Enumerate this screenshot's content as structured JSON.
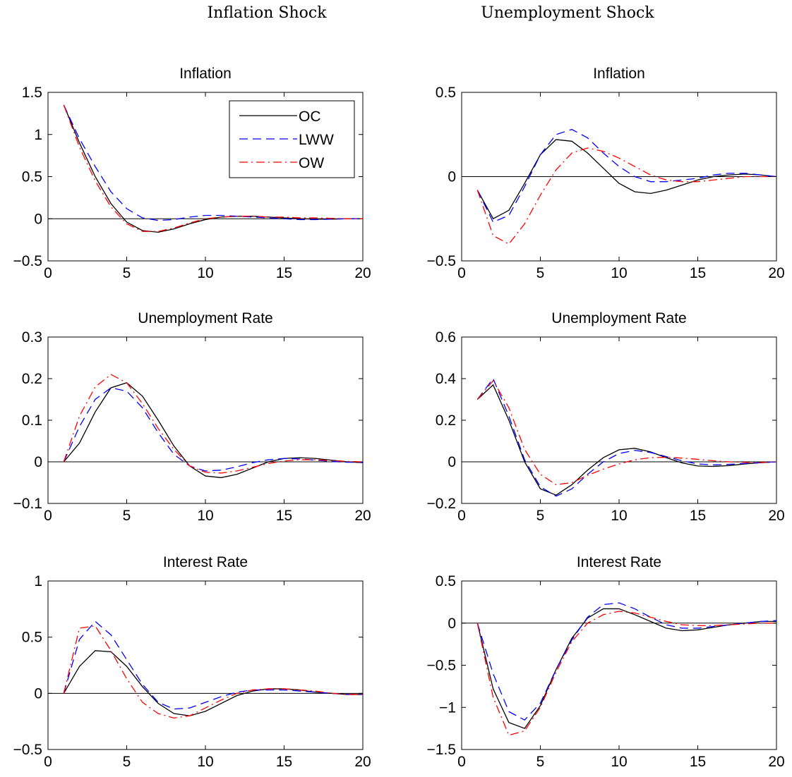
{
  "column_titles": [
    "Inflation Shock",
    "Unemployment Shock"
  ],
  "legend": [
    {
      "label": "OC",
      "color": "#000000",
      "dash": "solid"
    },
    {
      "label": "LWW",
      "color": "#0000ff",
      "dash": "dashed"
    },
    {
      "label": "OW",
      "color": "#ff0000",
      "dash": "dashdot"
    }
  ],
  "chart_data": [
    {
      "type": "line",
      "title": "Inflation",
      "column": "Inflation Shock",
      "xlim": [
        0,
        20
      ],
      "ylim": [
        -0.5,
        1.5
      ],
      "xticks": [
        0,
        5,
        10,
        15,
        20
      ],
      "yticks": [
        -0.5,
        0,
        0.5,
        1,
        1.5
      ],
      "ytick_labels": [
        "−0.5",
        "0",
        "0.5",
        "1",
        "1.5"
      ],
      "legend": true,
      "legend_position": "top-right",
      "zero_line": true,
      "x": [
        1,
        2,
        3,
        4,
        5,
        6,
        7,
        8,
        9,
        10,
        11,
        12,
        13,
        14,
        15,
        16,
        17,
        18,
        19,
        20
      ],
      "series": [
        {
          "name": "OC",
          "values": [
            1.35,
            0.9,
            0.5,
            0.18,
            -0.04,
            -0.14,
            -0.16,
            -0.12,
            -0.06,
            -0.01,
            0.02,
            0.03,
            0.03,
            0.02,
            0.01,
            0.0,
            -0.005,
            -0.005,
            0.0,
            0.0
          ]
        },
        {
          "name": "LWW",
          "values": [
            1.35,
            0.95,
            0.62,
            0.32,
            0.12,
            0.01,
            -0.02,
            -0.01,
            0.02,
            0.04,
            0.04,
            0.03,
            0.02,
            0.01,
            0.0,
            -0.01,
            -0.01,
            -0.005,
            0.0,
            0.0
          ]
        },
        {
          "name": "OW",
          "values": [
            1.35,
            0.85,
            0.45,
            0.14,
            -0.06,
            -0.15,
            -0.15,
            -0.11,
            -0.05,
            0.0,
            0.02,
            0.03,
            0.03,
            0.02,
            0.02,
            0.01,
            0.01,
            0.005,
            0.0,
            0.0
          ]
        }
      ]
    },
    {
      "type": "line",
      "title": "Inflation",
      "column": "Unemployment Shock",
      "xlim": [
        0,
        20
      ],
      "ylim": [
        -0.5,
        0.5
      ],
      "xticks": [
        0,
        5,
        10,
        15,
        20
      ],
      "yticks": [
        -0.5,
        0,
        0.5
      ],
      "ytick_labels": [
        "−0.5",
        "0",
        "0.5"
      ],
      "legend": false,
      "zero_line": true,
      "x": [
        1,
        2,
        3,
        4,
        5,
        6,
        7,
        8,
        9,
        10,
        11,
        12,
        13,
        14,
        15,
        16,
        17,
        18,
        19,
        20
      ],
      "series": [
        {
          "name": "OC",
          "values": [
            -0.08,
            -0.25,
            -0.2,
            -0.04,
            0.13,
            0.22,
            0.21,
            0.14,
            0.05,
            -0.04,
            -0.09,
            -0.1,
            -0.08,
            -0.05,
            -0.02,
            0.0,
            0.01,
            0.015,
            0.01,
            0.0
          ]
        },
        {
          "name": "LWW",
          "values": [
            -0.08,
            -0.27,
            -0.23,
            -0.06,
            0.13,
            0.25,
            0.28,
            0.23,
            0.14,
            0.06,
            0.0,
            -0.03,
            -0.03,
            -0.02,
            -0.01,
            0.01,
            0.02,
            0.02,
            0.01,
            0.0
          ]
        },
        {
          "name": "OW",
          "values": [
            -0.08,
            -0.35,
            -0.4,
            -0.28,
            -0.11,
            0.04,
            0.14,
            0.17,
            0.15,
            0.11,
            0.06,
            0.01,
            -0.02,
            -0.03,
            -0.03,
            -0.02,
            -0.01,
            0.0,
            0.0,
            0.0
          ]
        }
      ]
    },
    {
      "type": "line",
      "title": "Unemployment Rate",
      "column": "Inflation Shock",
      "xlim": [
        0,
        20
      ],
      "ylim": [
        -0.1,
        0.3
      ],
      "xticks": [
        0,
        5,
        10,
        15,
        20
      ],
      "yticks": [
        -0.1,
        0,
        0.1,
        0.2,
        0.3
      ],
      "ytick_labels": [
        "−0.1",
        "0",
        "0.1",
        "0.2",
        "0.3"
      ],
      "legend": false,
      "zero_line": true,
      "x": [
        1,
        2,
        3,
        4,
        5,
        6,
        7,
        8,
        9,
        10,
        11,
        12,
        13,
        14,
        15,
        16,
        17,
        18,
        19,
        20
      ],
      "series": [
        {
          "name": "OC",
          "values": [
            0.0,
            0.045,
            0.12,
            0.178,
            0.19,
            0.158,
            0.1,
            0.038,
            -0.01,
            -0.034,
            -0.038,
            -0.03,
            -0.015,
            0.0,
            0.008,
            0.01,
            0.008,
            0.004,
            0.0,
            -0.002
          ]
        },
        {
          "name": "LWW",
          "values": [
            0.0,
            0.085,
            0.15,
            0.178,
            0.17,
            0.13,
            0.07,
            0.018,
            -0.01,
            -0.022,
            -0.02,
            -0.012,
            -0.002,
            0.005,
            0.008,
            0.007,
            0.004,
            0.001,
            -0.001,
            -0.001
          ]
        },
        {
          "name": "OW",
          "values": [
            0.0,
            0.11,
            0.18,
            0.21,
            0.19,
            0.14,
            0.08,
            0.03,
            -0.01,
            -0.025,
            -0.027,
            -0.022,
            -0.013,
            -0.004,
            0.002,
            0.005,
            0.005,
            0.003,
            0.001,
            0.0
          ]
        }
      ]
    },
    {
      "type": "line",
      "title": "Unemployment Rate",
      "column": "Unemployment Shock",
      "xlim": [
        0,
        20
      ],
      "ylim": [
        -0.2,
        0.6
      ],
      "xticks": [
        0,
        5,
        10,
        15,
        20
      ],
      "yticks": [
        -0.2,
        0,
        0.2,
        0.4,
        0.6
      ],
      "ytick_labels": [
        "−0.2",
        "0",
        "0.2",
        "0.4",
        "0.6"
      ],
      "legend": false,
      "zero_line": true,
      "x": [
        1,
        2,
        3,
        4,
        5,
        6,
        7,
        8,
        9,
        10,
        11,
        12,
        13,
        14,
        15,
        16,
        17,
        18,
        19,
        20
      ],
      "series": [
        {
          "name": "OC",
          "values": [
            0.3,
            0.37,
            0.2,
            0.0,
            -0.13,
            -0.16,
            -0.11,
            -0.04,
            0.02,
            0.058,
            0.065,
            0.048,
            0.02,
            -0.005,
            -0.02,
            -0.022,
            -0.018,
            -0.01,
            -0.004,
            0.0
          ]
        },
        {
          "name": "LWW",
          "values": [
            0.3,
            0.4,
            0.22,
            0.01,
            -0.12,
            -0.165,
            -0.13,
            -0.06,
            0.0,
            0.04,
            0.055,
            0.045,
            0.025,
            0.005,
            -0.01,
            -0.015,
            -0.012,
            -0.008,
            -0.004,
            0.0
          ]
        },
        {
          "name": "OW",
          "values": [
            0.3,
            0.39,
            0.26,
            0.06,
            -0.06,
            -0.11,
            -0.1,
            -0.065,
            -0.035,
            -0.01,
            0.01,
            0.02,
            0.022,
            0.018,
            0.012,
            0.005,
            0.0,
            -0.003,
            -0.003,
            0.0
          ]
        }
      ]
    },
    {
      "type": "line",
      "title": "Interest Rate",
      "column": "Inflation Shock",
      "xlim": [
        0,
        20
      ],
      "ylim": [
        -0.5,
        1.0
      ],
      "xticks": [
        0,
        5,
        10,
        15,
        20
      ],
      "yticks": [
        -0.5,
        0,
        0.5,
        1
      ],
      "ytick_labels": [
        "−0.5",
        "0",
        "0.5",
        "1"
      ],
      "legend": false,
      "zero_line": true,
      "x": [
        1,
        2,
        3,
        4,
        5,
        6,
        7,
        8,
        9,
        10,
        11,
        12,
        13,
        14,
        15,
        16,
        17,
        18,
        19,
        20
      ],
      "series": [
        {
          "name": "OC",
          "values": [
            0.0,
            0.24,
            0.38,
            0.37,
            0.24,
            0.06,
            -0.09,
            -0.18,
            -0.2,
            -0.16,
            -0.09,
            -0.02,
            0.02,
            0.04,
            0.04,
            0.03,
            0.01,
            0.0,
            -0.01,
            -0.01
          ]
        },
        {
          "name": "LWW",
          "values": [
            0.0,
            0.48,
            0.64,
            0.52,
            0.3,
            0.08,
            -0.08,
            -0.14,
            -0.13,
            -0.08,
            -0.03,
            0.01,
            0.03,
            0.03,
            0.03,
            0.02,
            0.01,
            0.0,
            -0.01,
            -0.01
          ]
        },
        {
          "name": "OW",
          "values": [
            0.0,
            0.58,
            0.6,
            0.38,
            0.13,
            -0.08,
            -0.18,
            -0.22,
            -0.2,
            -0.13,
            -0.06,
            0.0,
            0.03,
            0.04,
            0.04,
            0.03,
            0.02,
            0.0,
            -0.01,
            -0.01
          ]
        }
      ]
    },
    {
      "type": "line",
      "title": "Interest Rate",
      "column": "Unemployment Shock",
      "xlim": [
        0,
        20
      ],
      "ylim": [
        -1.5,
        0.5
      ],
      "xticks": [
        0,
        5,
        10,
        15,
        20
      ],
      "yticks": [
        -1.5,
        -1,
        -0.5,
        0,
        0.5
      ],
      "ytick_labels": [
        "−1.5",
        "−1",
        "−0.5",
        "0",
        "0.5"
      ],
      "legend": false,
      "zero_line": true,
      "x": [
        1,
        2,
        3,
        4,
        5,
        6,
        7,
        8,
        9,
        10,
        11,
        12,
        13,
        14,
        15,
        16,
        17,
        18,
        19,
        20
      ],
      "series": [
        {
          "name": "OC",
          "values": [
            0.0,
            -0.78,
            -1.18,
            -1.25,
            -0.98,
            -0.55,
            -0.18,
            0.06,
            0.17,
            0.17,
            0.1,
            0.02,
            -0.06,
            -0.09,
            -0.08,
            -0.05,
            -0.02,
            0.0,
            0.02,
            0.02
          ]
        },
        {
          "name": "LWW",
          "values": [
            0.0,
            -0.6,
            -1.05,
            -1.15,
            -0.95,
            -0.55,
            -0.2,
            0.07,
            0.22,
            0.24,
            0.17,
            0.07,
            -0.02,
            -0.06,
            -0.06,
            -0.04,
            -0.02,
            0.0,
            0.02,
            0.03
          ]
        },
        {
          "name": "OW",
          "values": [
            0.0,
            -0.88,
            -1.33,
            -1.28,
            -1.0,
            -0.58,
            -0.22,
            0.0,
            0.1,
            0.14,
            0.12,
            0.07,
            0.02,
            -0.02,
            -0.03,
            -0.03,
            -0.02,
            -0.01,
            0.0,
            0.0
          ]
        }
      ]
    }
  ]
}
